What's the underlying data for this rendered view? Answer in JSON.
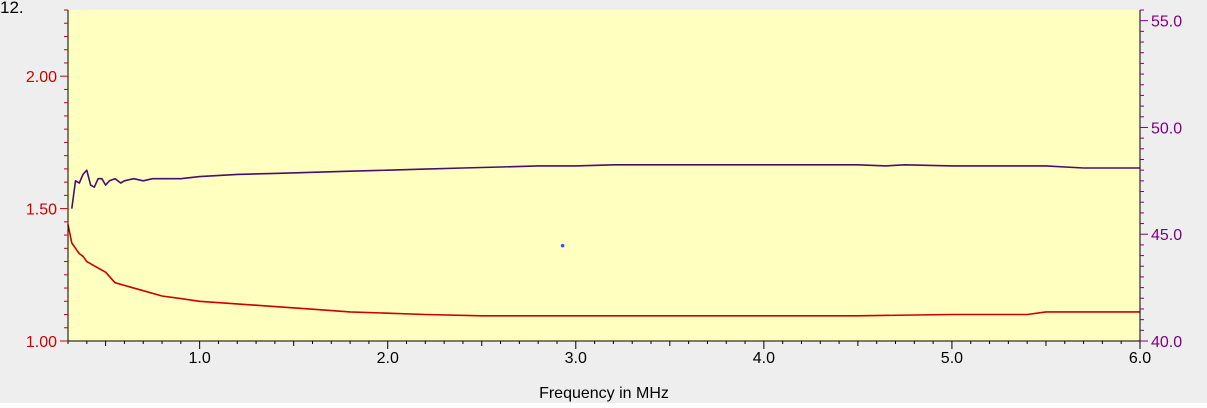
{
  "window": {
    "corner_label": "12."
  },
  "chart_data": {
    "type": "line",
    "title": "",
    "xlabel": "Frequency in MHz",
    "xlim": [
      0.3,
      6.0
    ],
    "x_ticks": [
      1.0,
      2.0,
      3.0,
      4.0,
      5.0,
      6.0
    ],
    "x_tick_labels": [
      "1.0",
      "2.0",
      "3.0",
      "4.0",
      "5.0",
      "6.0"
    ],
    "left_axis": {
      "ylim": [
        1.0,
        2.25
      ],
      "ticks": [
        1.0,
        1.5,
        2.0
      ],
      "tick_labels": [
        "1.00",
        "1.50",
        "2.00"
      ],
      "color": "#cc0000"
    },
    "right_axis": {
      "ylim": [
        40.0,
        55.5
      ],
      "ticks": [
        40.0,
        45.0,
        50.0,
        55.0
      ],
      "tick_labels": [
        "40.0",
        "45.0",
        "50.0",
        "55.0"
      ],
      "color": "#800080"
    },
    "grid": false,
    "plot_background": "#ffffc0",
    "frame_background": "#eeeeee",
    "series": [
      {
        "axis": "right",
        "color": "#4b0e6e",
        "x": [
          0.32,
          0.34,
          0.36,
          0.38,
          0.4,
          0.42,
          0.44,
          0.46,
          0.48,
          0.5,
          0.52,
          0.55,
          0.58,
          0.6,
          0.65,
          0.7,
          0.75,
          0.8,
          0.9,
          1.0,
          1.2,
          1.4,
          1.6,
          1.8,
          2.0,
          2.2,
          2.4,
          2.6,
          2.8,
          3.0,
          3.2,
          3.5,
          4.0,
          4.5,
          4.65,
          4.75,
          5.0,
          5.5,
          5.7,
          5.9,
          6.0
        ],
        "y": [
          46.2,
          47.5,
          47.4,
          47.8,
          48.0,
          47.3,
          47.2,
          47.6,
          47.6,
          47.3,
          47.5,
          47.6,
          47.4,
          47.5,
          47.6,
          47.5,
          47.6,
          47.6,
          47.6,
          47.7,
          47.8,
          47.85,
          47.9,
          47.95,
          48.0,
          48.05,
          48.1,
          48.15,
          48.2,
          48.2,
          48.25,
          48.25,
          48.25,
          48.25,
          48.2,
          48.25,
          48.2,
          48.2,
          48.1,
          48.1,
          48.1
        ]
      },
      {
        "axis": "left",
        "color": "#cc0000",
        "x": [
          0.3,
          0.32,
          0.34,
          0.36,
          0.38,
          0.4,
          0.45,
          0.5,
          0.55,
          0.6,
          0.7,
          0.8,
          0.9,
          1.0,
          1.2,
          1.4,
          1.6,
          1.8,
          2.0,
          2.2,
          2.5,
          2.8,
          3.0,
          3.5,
          4.0,
          4.5,
          5.0,
          5.4,
          5.5,
          5.8,
          6.0
        ],
        "y": [
          1.44,
          1.37,
          1.35,
          1.33,
          1.32,
          1.3,
          1.28,
          1.26,
          1.22,
          1.21,
          1.19,
          1.17,
          1.16,
          1.15,
          1.14,
          1.13,
          1.12,
          1.11,
          1.105,
          1.1,
          1.095,
          1.095,
          1.095,
          1.095,
          1.095,
          1.095,
          1.1,
          1.1,
          1.11,
          1.11,
          1.11
        ]
      }
    ],
    "annotations": [
      {
        "type": "point",
        "x": 2.93,
        "y_left": 1.36,
        "color": "#3355ff"
      }
    ]
  }
}
